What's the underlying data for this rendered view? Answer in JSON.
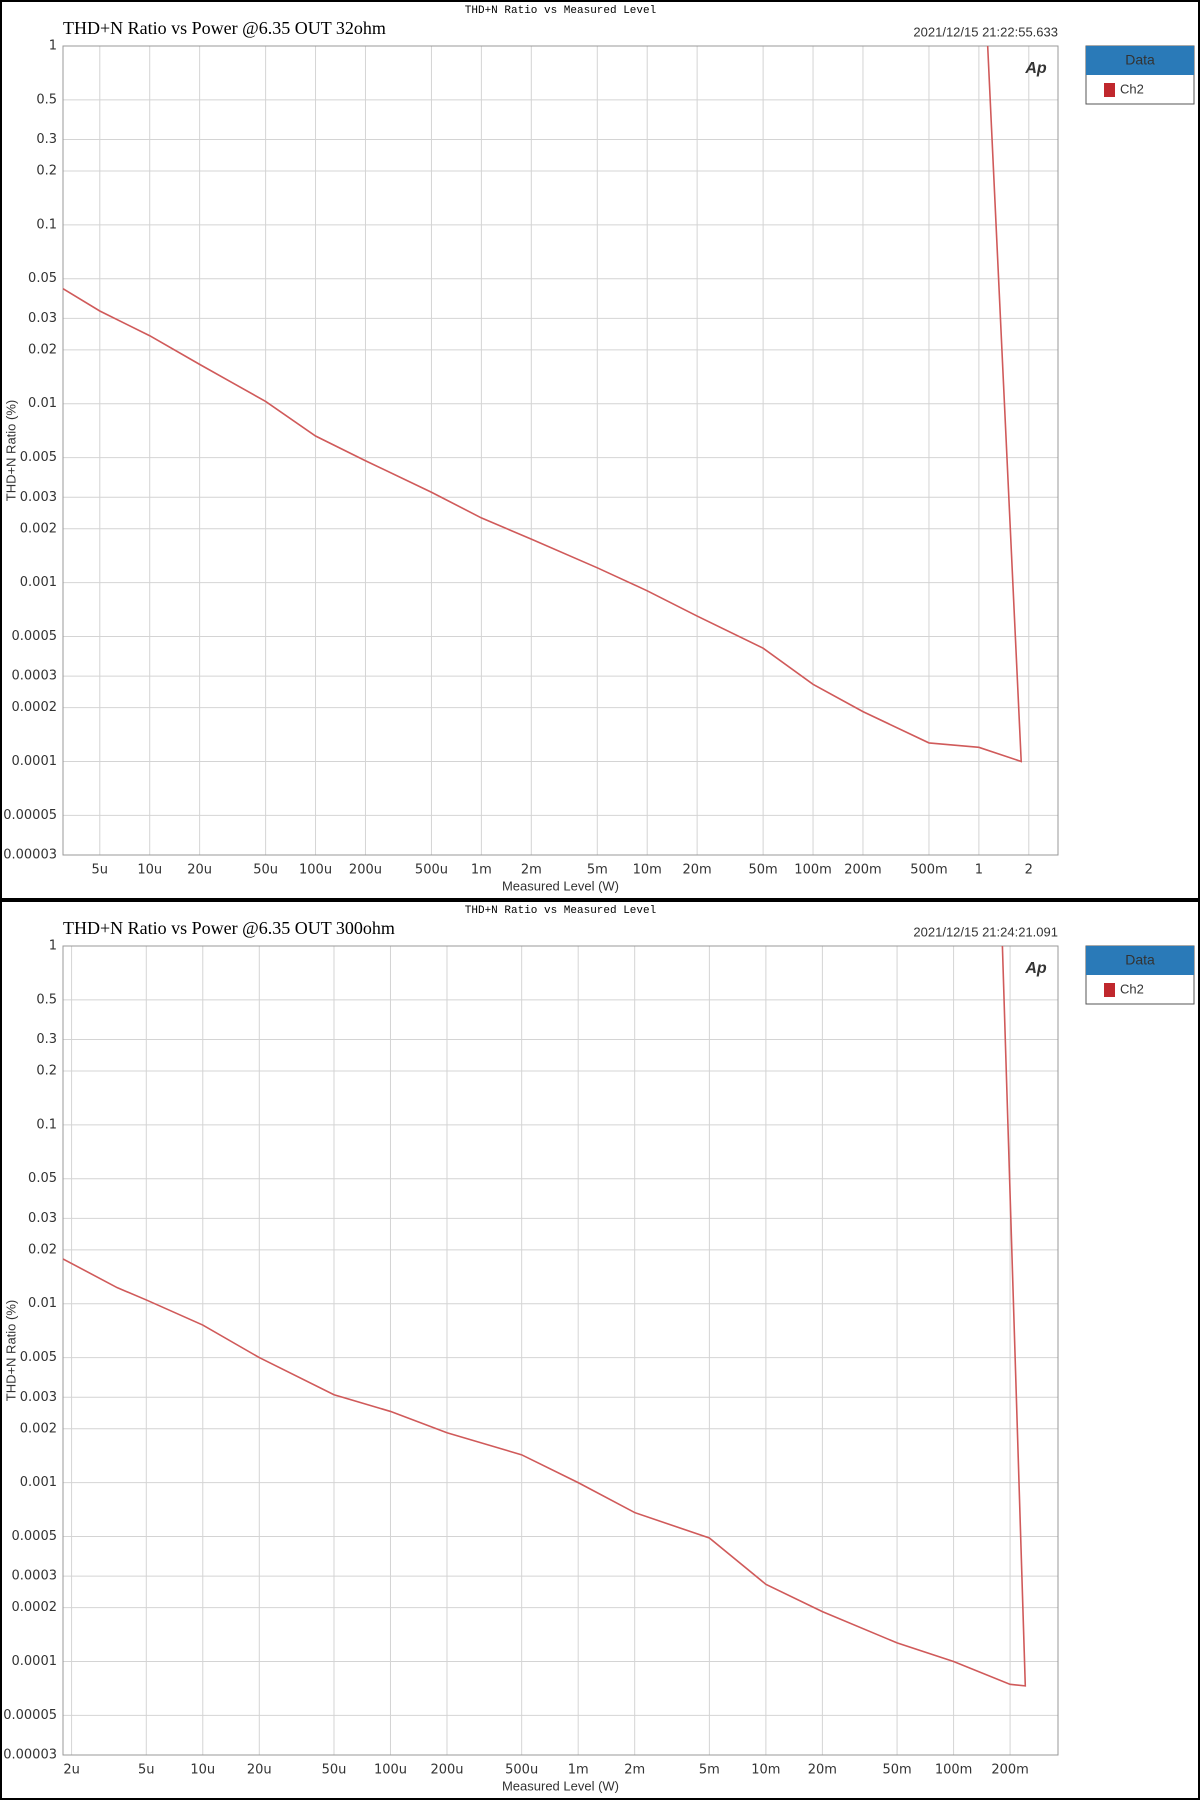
{
  "chart_data": [
    {
      "type": "line",
      "header": "THD+N Ratio vs Measured Level",
      "title": "THD+N Ratio vs Power @6.35 OUT 32ohm",
      "timestamp": "2021/12/15 21:22:55.633",
      "logo": "Ap",
      "legend_title": "Data",
      "xlabel": "Measured Level (W)",
      "ylabel": "THD+N Ratio (%)",
      "xscale": "log",
      "yscale": "log",
      "grid": true,
      "xlim": [
        3e-06,
        3
      ],
      "ylim": [
        3e-05,
        1
      ],
      "xticks": [
        {
          "value": 5e-06,
          "label": "5u"
        },
        {
          "value": 1e-05,
          "label": "10u"
        },
        {
          "value": 2e-05,
          "label": "20u"
        },
        {
          "value": 5e-05,
          "label": "50u"
        },
        {
          "value": 0.0001,
          "label": "100u"
        },
        {
          "value": 0.0002,
          "label": "200u"
        },
        {
          "value": 0.0005,
          "label": "500u"
        },
        {
          "value": 0.001,
          "label": "1m"
        },
        {
          "value": 0.002,
          "label": "2m"
        },
        {
          "value": 0.005,
          "label": "5m"
        },
        {
          "value": 0.01,
          "label": "10m"
        },
        {
          "value": 0.02,
          "label": "20m"
        },
        {
          "value": 0.05,
          "label": "50m"
        },
        {
          "value": 0.1,
          "label": "100m"
        },
        {
          "value": 0.2,
          "label": "200m"
        },
        {
          "value": 0.5,
          "label": "500m"
        },
        1,
        2
      ],
      "yticks": [
        1,
        0.5,
        0.3,
        0.2,
        0.1,
        0.05,
        0.03,
        0.02,
        0.01,
        0.005,
        0.003,
        0.002,
        0.001,
        0.0005,
        0.0003,
        0.0002,
        0.0001,
        5e-05,
        3e-05
      ],
      "x": [
        3e-06,
        5e-06,
        1e-05,
        2e-05,
        5e-05,
        0.0001,
        0.0002,
        0.0005,
        0.001,
        0.002,
        0.005,
        0.01,
        0.02,
        0.05,
        0.1,
        0.2,
        0.5,
        1,
        1.8,
        1.13
      ],
      "series": [
        {
          "name": "Ch2",
          "color": "#c0282d",
          "line_color": "#d05a5a",
          "values": [
            0.044,
            0.033,
            0.024,
            0.0166,
            0.0103,
            0.0066,
            0.0048,
            0.0032,
            0.0023,
            0.00175,
            0.00121,
            0.0009,
            0.00065,
            0.00043,
            0.00027,
            0.00019,
            0.000127,
            0.00012,
            0.0001,
            1
          ]
        }
      ]
    },
    {
      "type": "line",
      "header": "THD+N Ratio vs Measured Level",
      "title": "THD+N Ratio vs Power @6.35 OUT 300ohm",
      "timestamp": "2021/12/15 21:24:21.091",
      "logo": "Ap",
      "legend_title": "Data",
      "xlabel": "Measured Level (W)",
      "ylabel": "THD+N Ratio (%)",
      "xscale": "log",
      "yscale": "log",
      "grid": true,
      "xlim": [
        1.8e-06,
        0.36
      ],
      "ylim": [
        3e-05,
        1
      ],
      "xticks": [
        {
          "value": 2e-06,
          "label": "2u"
        },
        {
          "value": 5e-06,
          "label": "5u"
        },
        {
          "value": 1e-05,
          "label": "10u"
        },
        {
          "value": 2e-05,
          "label": "20u"
        },
        {
          "value": 5e-05,
          "label": "50u"
        },
        {
          "value": 0.0001,
          "label": "100u"
        },
        {
          "value": 0.0002,
          "label": "200u"
        },
        {
          "value": 0.0005,
          "label": "500u"
        },
        {
          "value": 0.001,
          "label": "1m"
        },
        {
          "value": 0.002,
          "label": "2m"
        },
        {
          "value": 0.005,
          "label": "5m"
        },
        {
          "value": 0.01,
          "label": "10m"
        },
        {
          "value": 0.02,
          "label": "20m"
        },
        {
          "value": 0.05,
          "label": "50m"
        },
        {
          "value": 0.1,
          "label": "100m"
        },
        {
          "value": 0.2,
          "label": "200m"
        }
      ],
      "yticks": [
        1,
        0.5,
        0.3,
        0.2,
        0.1,
        0.05,
        0.03,
        0.02,
        0.01,
        0.005,
        0.003,
        0.002,
        0.001,
        0.0005,
        0.0003,
        0.0002,
        0.0001,
        5e-05,
        3e-05
      ],
      "x": [
        1.8e-06,
        3.5e-06,
        5e-06,
        1e-05,
        2e-05,
        5e-05,
        0.0001,
        0.0002,
        0.0005,
        0.001,
        0.002,
        0.005,
        0.01,
        0.02,
        0.05,
        0.1,
        0.2,
        0.241,
        0.182
      ],
      "series": [
        {
          "name": "Ch2",
          "color": "#c0282d",
          "line_color": "#d05a5a",
          "values": [
            0.0178,
            0.0123,
            0.0105,
            0.0076,
            0.005,
            0.0031,
            0.0025,
            0.0019,
            0.00143,
            0.001,
            0.00068,
            0.00049,
            0.00027,
            0.00019,
            0.000127,
            0.0001,
            7.45e-05,
            7.3e-05,
            1
          ]
        }
      ]
    }
  ]
}
